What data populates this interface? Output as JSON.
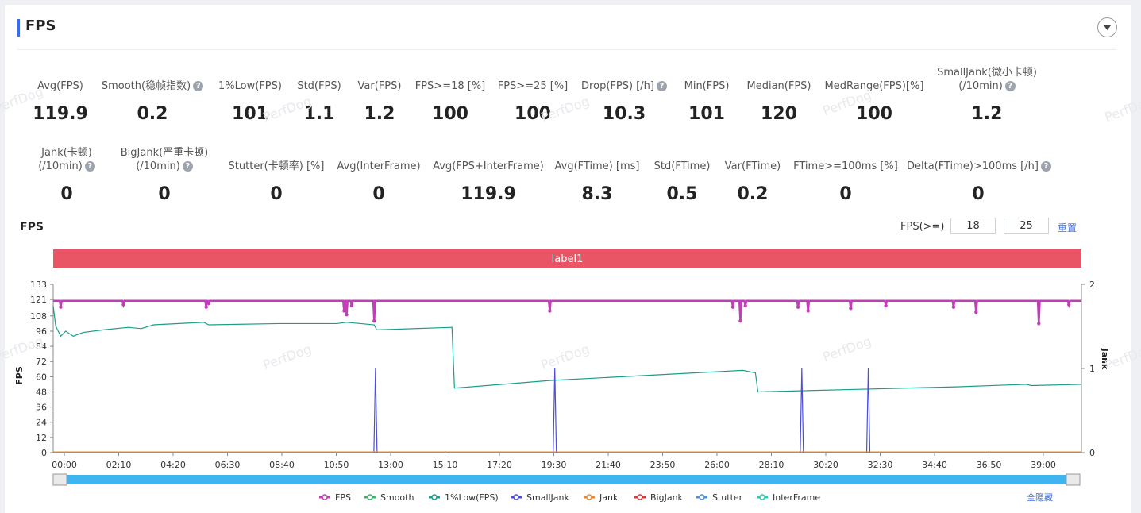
{
  "header": {
    "title": "FPS"
  },
  "metrics_row1": [
    {
      "label": "Avg(FPS)",
      "value": "119.9",
      "help": false
    },
    {
      "label": "Smooth(稳帧指数)",
      "value": "0.2",
      "help": true
    },
    {
      "label": "1%Low(FPS)",
      "value": "101",
      "help": false
    },
    {
      "label": "Std(FPS)",
      "value": "1.1",
      "help": false
    },
    {
      "label": "Var(FPS)",
      "value": "1.2",
      "help": false
    },
    {
      "label": "FPS>=18 [%]",
      "value": "100",
      "help": false
    },
    {
      "label": "FPS>=25 [%]",
      "value": "100",
      "help": false
    },
    {
      "label": "Drop(FPS) [/h]",
      "value": "10.3",
      "help": true
    },
    {
      "label": "Min(FPS)",
      "value": "101",
      "help": false
    },
    {
      "label": "Median(FPS)",
      "value": "120",
      "help": false
    },
    {
      "label": "MedRange(FPS)[%]",
      "value": "100",
      "help": false
    },
    {
      "label": "SmallJank(微小卡顿)",
      "label2": "(/10min)",
      "value": "1.2",
      "help": true
    }
  ],
  "metrics_row2": [
    {
      "label": "Jank(卡顿)",
      "label2": "(/10min)",
      "value": "0",
      "help": true
    },
    {
      "label": "BigJank(严重卡顿)",
      "label2": "(/10min)",
      "value": "0",
      "help": true
    },
    {
      "label": "Stutter(卡顿率) [%]",
      "value": "0",
      "help": false
    },
    {
      "label": "Avg(InterFrame)",
      "value": "0",
      "help": false
    },
    {
      "label": "Avg(FPS+InterFrame)",
      "value": "119.9",
      "help": false
    },
    {
      "label": "Avg(FTime) [ms]",
      "value": "8.3",
      "help": false
    },
    {
      "label": "Std(FTime)",
      "value": "0.5",
      "help": false
    },
    {
      "label": "Var(FTime)",
      "value": "0.2",
      "help": false
    },
    {
      "label": "FTime>=100ms [%]",
      "value": "0",
      "help": false
    },
    {
      "label": "Delta(FTime)>100ms [/h]",
      "value": "0",
      "help": true
    }
  ],
  "chart_header": {
    "title": "FPS",
    "threshold_label": "FPS(>=)",
    "threshold1": "18",
    "threshold2": "25",
    "reset_label": "重置",
    "band_label": "label1",
    "band_color": "#e95565"
  },
  "watermark": "PerfDog",
  "chart_data": {
    "type": "line",
    "ylabel": "FPS",
    "y2label": "Jank",
    "ylim": [
      0,
      133
    ],
    "y2lim": [
      0,
      2
    ],
    "yticks": [
      "133",
      "121",
      "108",
      "96",
      "84",
      "72",
      "60",
      "48",
      "36",
      "24",
      "12",
      "0"
    ],
    "y2ticks": [
      "2",
      "1",
      "0"
    ],
    "x_labels": [
      "00:00",
      "02:10",
      "04:20",
      "06:30",
      "08:40",
      "10:50",
      "13:00",
      "15:10",
      "17:20",
      "19:30",
      "21:40",
      "23:50",
      "26:00",
      "28:10",
      "30:20",
      "32:30",
      "34:40",
      "36:50",
      "39:00"
    ],
    "xlim_min": [
      0,
      41
    ],
    "series": [
      {
        "name": "FPS",
        "color": "#c03fb6",
        "baseline": 120,
        "dips": [
          [
            0.3,
            115
          ],
          [
            2.8,
            117
          ],
          [
            6.1,
            115
          ],
          [
            6.2,
            118
          ],
          [
            11.6,
            112
          ],
          [
            11.7,
            109
          ],
          [
            11.9,
            116
          ],
          [
            12.8,
            104
          ],
          [
            19.8,
            112
          ],
          [
            27.1,
            115
          ],
          [
            27.4,
            104
          ],
          [
            27.6,
            116
          ],
          [
            29.7,
            115
          ],
          [
            30.1,
            112
          ],
          [
            31.8,
            114
          ],
          [
            33.2,
            116
          ],
          [
            35.9,
            115
          ],
          [
            36.8,
            111
          ],
          [
            39.3,
            102
          ],
          [
            40.5,
            117
          ]
        ]
      },
      {
        "name": "Smooth",
        "color": "#3bb36a"
      },
      {
        "name": "1%Low(FPS)",
        "color": "#1a9e8a",
        "points": [
          [
            0,
            116
          ],
          [
            0.1,
            100
          ],
          [
            0.3,
            92
          ],
          [
            0.5,
            96
          ],
          [
            0.8,
            92
          ],
          [
            1.2,
            95
          ],
          [
            2,
            97
          ],
          [
            3,
            99
          ],
          [
            3.5,
            98
          ],
          [
            4,
            101
          ],
          [
            6,
            103
          ],
          [
            6.2,
            101
          ],
          [
            9,
            102
          ],
          [
            11.3,
            102
          ],
          [
            11.7,
            103
          ],
          [
            12.8,
            101
          ],
          [
            12.9,
            97
          ],
          [
            15.9,
            99
          ],
          [
            16.0,
            51
          ],
          [
            19.8,
            57
          ],
          [
            27.5,
            65
          ],
          [
            28.0,
            63
          ],
          [
            28.1,
            48
          ],
          [
            32,
            50
          ],
          [
            36,
            52
          ],
          [
            38.8,
            54
          ],
          [
            39,
            53
          ],
          [
            41,
            54
          ]
        ]
      },
      {
        "name": "SmallJank",
        "color": "#4c4ed6",
        "spikes": [
          12.85,
          20.0,
          29.85,
          32.5
        ],
        "spike_value": 1
      },
      {
        "name": "Jank",
        "color": "#e58a34"
      },
      {
        "name": "BigJank",
        "color": "#d93b3b"
      },
      {
        "name": "Stutter",
        "color": "#4a92df"
      },
      {
        "name": "InterFrame",
        "color": "#2dc7b0"
      }
    ],
    "legend_toggle": "全隐藏"
  }
}
